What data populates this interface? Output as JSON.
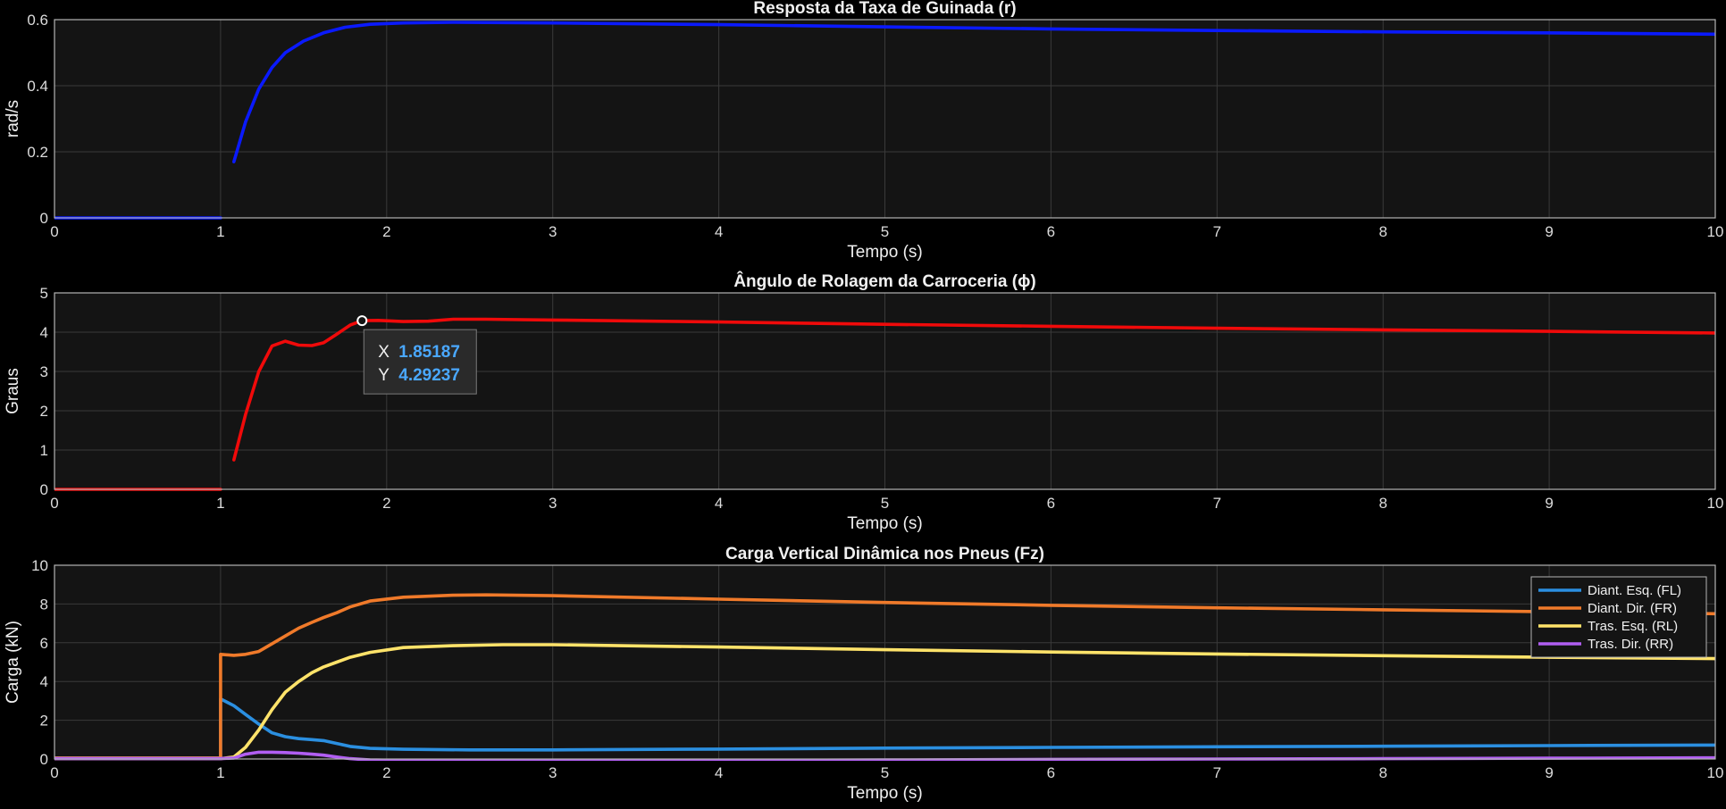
{
  "chart_data": [
    {
      "type": "line",
      "title": "Resposta da Taxa de Guinada (r)",
      "xlabel": "Tempo (s)",
      "ylabel": "rad/s",
      "xlim": [
        0,
        10
      ],
      "ylim": [
        0,
        0.6
      ],
      "xticks": [
        "0",
        "1",
        "2",
        "3",
        "4",
        "5",
        "6",
        "7",
        "8",
        "9",
        "10"
      ],
      "yticks": [
        "0",
        "0.2",
        "0.4",
        "0.6"
      ],
      "grid": true,
      "legend": null,
      "series": [
        {
          "color": "#0a1aff",
          "segments": [
            [
              [
                0,
                0
              ],
              [
                1,
                0
              ]
            ],
            [
              [
                1.08,
                0.17
              ],
              [
                1.15,
                0.29
              ],
              [
                1.23,
                0.39
              ],
              [
                1.31,
                0.455
              ],
              [
                1.39,
                0.5
              ],
              [
                1.5,
                0.535
              ],
              [
                1.62,
                0.56
              ],
              [
                1.75,
                0.577
              ],
              [
                1.9,
                0.586
              ],
              [
                2.1,
                0.59
              ],
              [
                2.4,
                0.592
              ],
              [
                3,
                0.59
              ],
              [
                4,
                0.585
              ],
              [
                5,
                0.578
              ],
              [
                6,
                0.572
              ],
              [
                7,
                0.567
              ],
              [
                8,
                0.563
              ],
              [
                9,
                0.56
              ],
              [
                10,
                0.556
              ]
            ]
          ]
        }
      ]
    },
    {
      "type": "line",
      "title": "Ângulo de Rolagem da Carroceria (ϕ)",
      "xlabel": "Tempo (s)",
      "ylabel": "Graus",
      "xlim": [
        0,
        10
      ],
      "ylim": [
        0,
        5
      ],
      "xticks": [
        "0",
        "1",
        "2",
        "3",
        "4",
        "5",
        "6",
        "7",
        "8",
        "9",
        "10"
      ],
      "yticks": [
        "0",
        "1",
        "2",
        "3",
        "4",
        "5"
      ],
      "grid": true,
      "legend": null,
      "series": [
        {
          "color": "#f00a0a",
          "segments": [
            [
              [
                0,
                0
              ],
              [
                1,
                0
              ]
            ],
            [
              [
                1.08,
                0.75
              ],
              [
                1.15,
                1.9
              ],
              [
                1.23,
                3.0
              ],
              [
                1.31,
                3.65
              ],
              [
                1.39,
                3.77
              ],
              [
                1.47,
                3.67
              ],
              [
                1.55,
                3.66
              ],
              [
                1.62,
                3.73
              ],
              [
                1.7,
                3.95
              ],
              [
                1.78,
                4.18
              ],
              [
                1.85187,
                4.29237
              ],
              [
                1.95,
                4.3
              ],
              [
                2.1,
                4.27
              ],
              [
                2.25,
                4.28
              ],
              [
                2.4,
                4.33
              ],
              [
                2.6,
                4.33
              ],
              [
                3,
                4.31
              ],
              [
                4,
                4.26
              ],
              [
                5,
                4.2
              ],
              [
                6,
                4.15
              ],
              [
                7,
                4.1
              ],
              [
                8,
                4.06
              ],
              [
                9,
                4.02
              ],
              [
                10,
                3.98
              ]
            ]
          ]
        }
      ],
      "datatip": {
        "x_label": "X",
        "x_value": "1.85187",
        "y_label": "Y",
        "y_value": "4.29237",
        "point": [
          1.85187,
          4.29237
        ]
      }
    },
    {
      "type": "line",
      "title": "Carga Vertical Dinâmica nos Pneus (Fz)",
      "xlabel": "Tempo (s)",
      "ylabel": "Carga (kN)",
      "xlim": [
        0,
        10
      ],
      "ylim": [
        0,
        10
      ],
      "xticks": [
        "0",
        "1",
        "2",
        "3",
        "4",
        "5",
        "6",
        "7",
        "8",
        "9",
        "10"
      ],
      "yticks": [
        "0",
        "2",
        "4",
        "6",
        "8",
        "10"
      ],
      "grid": true,
      "legend": "top-right",
      "series": [
        {
          "name": "Diant. Esq. (FL)",
          "color": "#2b8fe0",
          "segments": [
            [
              [
                0,
                0.05
              ],
              [
                1,
                0.05
              ],
              [
                1,
                3.1
              ],
              [
                1.08,
                2.75
              ],
              [
                1.15,
                2.3
              ],
              [
                1.23,
                1.8
              ],
              [
                1.31,
                1.35
              ],
              [
                1.39,
                1.15
              ],
              [
                1.47,
                1.05
              ],
              [
                1.55,
                1.0
              ],
              [
                1.62,
                0.95
              ],
              [
                1.7,
                0.8
              ],
              [
                1.78,
                0.65
              ],
              [
                1.9,
                0.55
              ],
              [
                2.1,
                0.5
              ],
              [
                2.5,
                0.47
              ],
              [
                3,
                0.47
              ],
              [
                4,
                0.51
              ],
              [
                5,
                0.56
              ],
              [
                6,
                0.6
              ],
              [
                7,
                0.63
              ],
              [
                8,
                0.66
              ],
              [
                9,
                0.69
              ],
              [
                10,
                0.72
              ]
            ]
          ]
        },
        {
          "name": "Diant. Dir. (FR)",
          "color": "#f07a2a",
          "segments": [
            [
              [
                0,
                0.05
              ],
              [
                1,
                0.05
              ],
              [
                1,
                5.4
              ],
              [
                1.08,
                5.35
              ],
              [
                1.15,
                5.4
              ],
              [
                1.23,
                5.55
              ],
              [
                1.31,
                5.95
              ],
              [
                1.39,
                6.35
              ],
              [
                1.47,
                6.75
              ],
              [
                1.55,
                7.05
              ],
              [
                1.62,
                7.3
              ],
              [
                1.7,
                7.55
              ],
              [
                1.78,
                7.85
              ],
              [
                1.9,
                8.15
              ],
              [
                2.1,
                8.35
              ],
              [
                2.4,
                8.45
              ],
              [
                2.6,
                8.47
              ],
              [
                3,
                8.43
              ],
              [
                4,
                8.25
              ],
              [
                5,
                8.08
              ],
              [
                6,
                7.93
              ],
              [
                7,
                7.8
              ],
              [
                8,
                7.7
              ],
              [
                9,
                7.6
              ],
              [
                10,
                7.5
              ]
            ]
          ]
        },
        {
          "name": "Tras. Esq. (RL)",
          "color": "#ffe36a",
          "segments": [
            [
              [
                0,
                0.02
              ],
              [
                1,
                0.02
              ],
              [
                1.08,
                0.1
              ],
              [
                1.15,
                0.6
              ],
              [
                1.23,
                1.5
              ],
              [
                1.31,
                2.55
              ],
              [
                1.39,
                3.45
              ],
              [
                1.47,
                4.0
              ],
              [
                1.55,
                4.45
              ],
              [
                1.62,
                4.75
              ],
              [
                1.7,
                5.0
              ],
              [
                1.78,
                5.25
              ],
              [
                1.9,
                5.5
              ],
              [
                2.1,
                5.75
              ],
              [
                2.4,
                5.85
              ],
              [
                2.7,
                5.9
              ],
              [
                3,
                5.9
              ],
              [
                4,
                5.78
              ],
              [
                5,
                5.64
              ],
              [
                6,
                5.52
              ],
              [
                7,
                5.42
              ],
              [
                8,
                5.33
              ],
              [
                9,
                5.25
              ],
              [
                10,
                5.18
              ]
            ]
          ]
        },
        {
          "name": "Tras. Dir. (RR)",
          "color": "#b15ef2",
          "segments": [
            [
              [
                0,
                0.02
              ],
              [
                1,
                0.02
              ],
              [
                1.08,
                0.05
              ],
              [
                1.15,
                0.25
              ],
              [
                1.23,
                0.35
              ],
              [
                1.31,
                0.35
              ],
              [
                1.39,
                0.33
              ],
              [
                1.47,
                0.3
              ],
              [
                1.55,
                0.25
              ],
              [
                1.62,
                0.2
              ],
              [
                1.7,
                0.1
              ],
              [
                1.78,
                0.02
              ],
              [
                1.9,
                -0.05
              ],
              [
                2.1,
                -0.08
              ],
              [
                2.5,
                -0.1
              ],
              [
                3,
                -0.1
              ],
              [
                4,
                -0.08
              ],
              [
                5,
                -0.05
              ],
              [
                6,
                -0.02
              ],
              [
                7,
                0.0
              ],
              [
                8,
                0.02
              ],
              [
                9,
                0.04
              ],
              [
                10,
                0.06
              ]
            ]
          ]
        }
      ]
    }
  ]
}
